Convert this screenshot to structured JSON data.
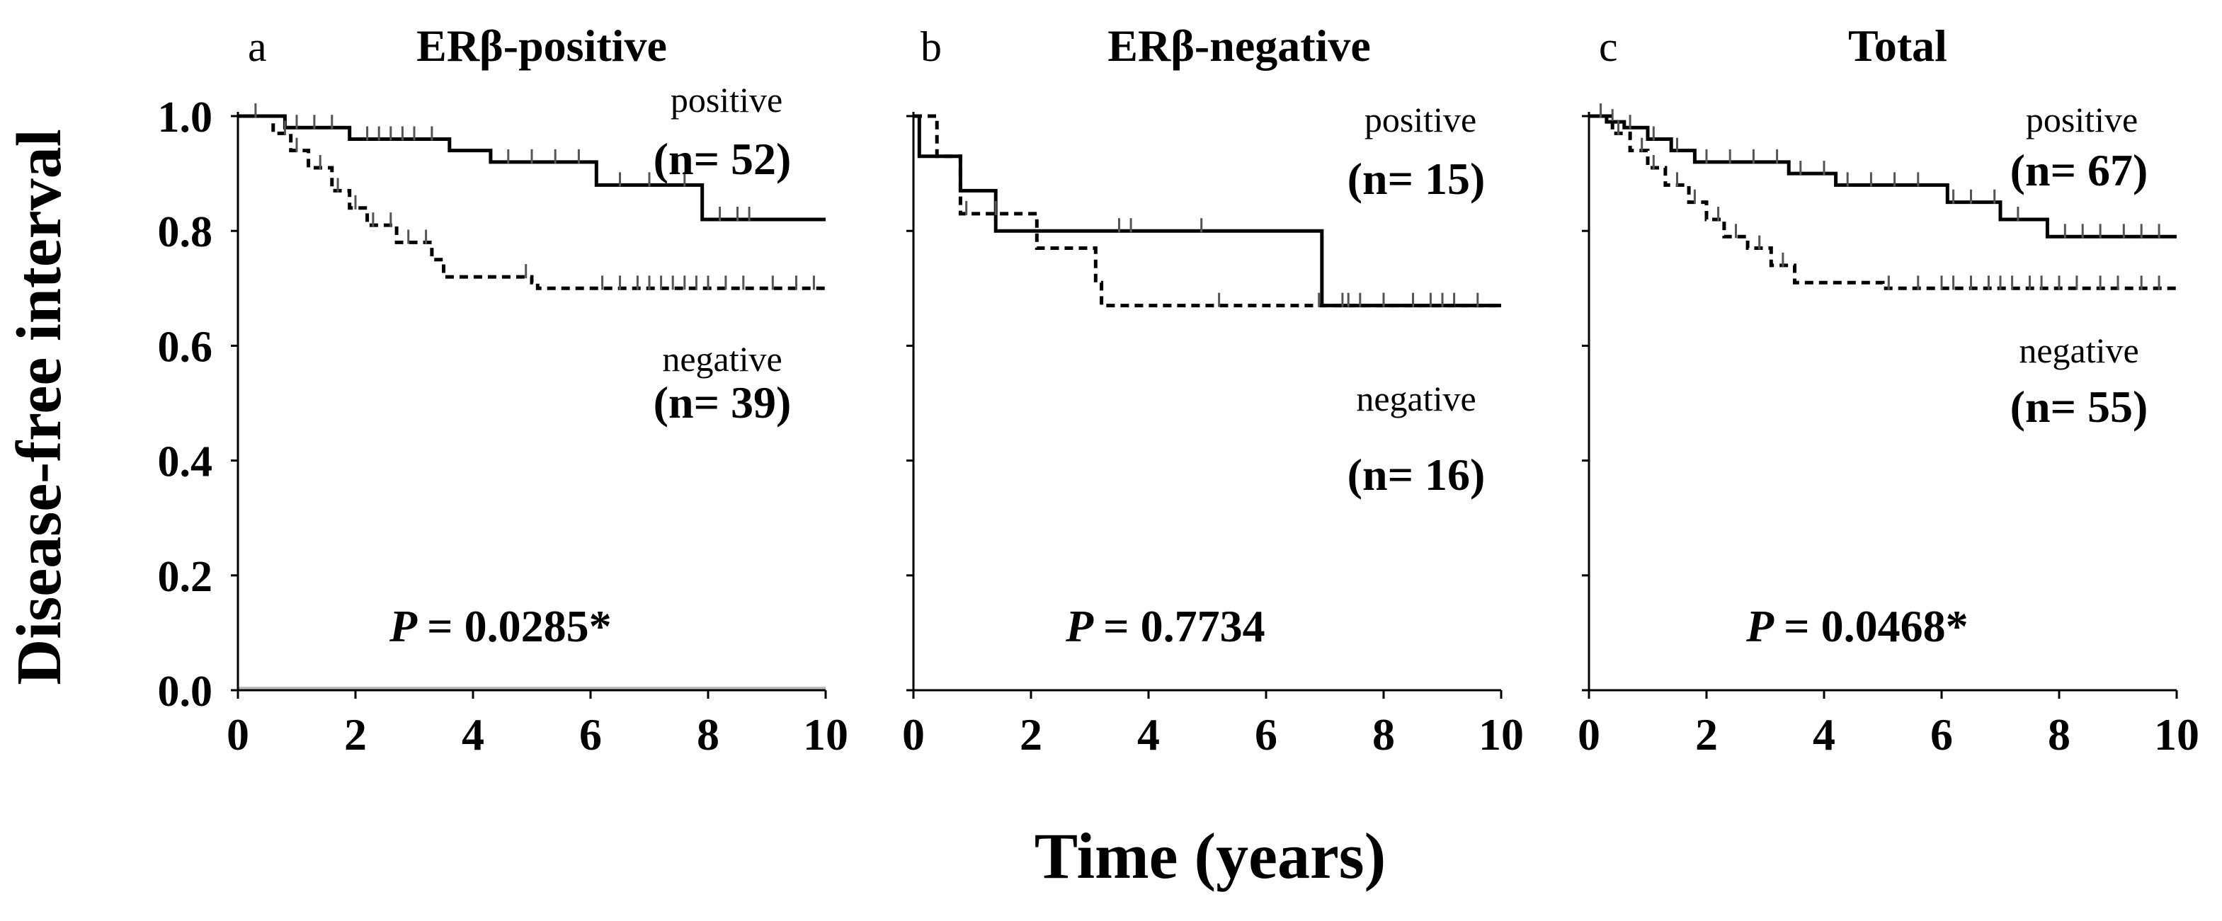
{
  "figure": {
    "ylabel": "Disease-free interval",
    "xlabel": "Time (years)"
  },
  "chart_data": [
    {
      "type": "line",
      "panel_letter": "a",
      "title": "ERβ-positive",
      "xlabel": "Time (years)",
      "ylabel": "Disease-free interval",
      "xlim": [
        0,
        10
      ],
      "ylim": [
        0,
        1
      ],
      "x_ticks": [
        "0",
        "2",
        "4",
        "6",
        "8",
        "10"
      ],
      "y_ticks": [
        "0.0",
        "0.2",
        "0.4",
        "0.6",
        "0.8",
        "1.0"
      ],
      "p_label": "P",
      "p_value_text": "= 0.0285*",
      "series": [
        {
          "name": "positive",
          "n_text": "(n= 52)",
          "style": "solid",
          "steps": [
            [
              0,
              1.0
            ],
            [
              0.8,
              0.98
            ],
            [
              1.9,
              0.96
            ],
            [
              3.6,
              0.94
            ],
            [
              4.3,
              0.92
            ],
            [
              6.1,
              0.88
            ],
            [
              7.9,
              0.82
            ],
            [
              10,
              0.82
            ]
          ],
          "censored": [
            1.0,
            1.3,
            1.6,
            2.2,
            2.4,
            2.6,
            2.8,
            3.0,
            3.3,
            4.6,
            5.0,
            5.4,
            5.8,
            6.5,
            7.0,
            7.6,
            8.2,
            8.5,
            8.7
          ]
        },
        {
          "name": "negative",
          "n_text": "(n= 39)",
          "style": "dashed",
          "steps": [
            [
              0,
              1.0
            ],
            [
              0.6,
              0.97
            ],
            [
              0.9,
              0.94
            ],
            [
              1.2,
              0.91
            ],
            [
              1.6,
              0.87
            ],
            [
              1.9,
              0.84
            ],
            [
              2.2,
              0.81
            ],
            [
              2.7,
              0.78
            ],
            [
              3.3,
              0.75
            ],
            [
              3.5,
              0.72
            ],
            [
              5.0,
              0.71
            ],
            [
              5.1,
              0.7
            ],
            [
              10,
              0.7
            ]
          ],
          "censored": [
            0.3,
            0.8,
            1.0,
            1.4,
            1.7,
            2.0,
            2.3,
            2.6,
            2.9,
            3.2,
            4.9,
            6.2,
            6.5,
            6.8,
            7.0,
            7.2,
            7.4,
            7.6,
            7.8,
            8.0,
            8.3,
            8.6,
            9.1,
            9.5,
            9.8
          ]
        }
      ]
    },
    {
      "type": "line",
      "panel_letter": "b",
      "title": "ERβ-negative",
      "xlabel": "Time (years)",
      "ylabel": "Disease-free interval",
      "xlim": [
        0,
        10
      ],
      "ylim": [
        0,
        1
      ],
      "x_ticks": [
        "0",
        "2",
        "4",
        "6",
        "8",
        "10"
      ],
      "y_ticks": [
        "0.0",
        "0.2",
        "0.4",
        "0.6",
        "0.8",
        "1.0"
      ],
      "p_label": "P",
      "p_value_text": "= 0.7734",
      "series": [
        {
          "name": "positive",
          "n_text": "(n= 15)",
          "style": "solid",
          "steps": [
            [
              0,
              1.0
            ],
            [
              0.1,
              0.93
            ],
            [
              0.8,
              0.87
            ],
            [
              1.4,
              0.8
            ],
            [
              6.9,
              0.8
            ],
            [
              6.95,
              0.67
            ],
            [
              10,
              0.67
            ]
          ],
          "censored": [
            3.5,
            3.7,
            4.9,
            7.3,
            7.6,
            8.0,
            8.5,
            9.0,
            9.2
          ]
        },
        {
          "name": "negative",
          "n_text": "(n= 16)",
          "style": "dashed",
          "steps": [
            [
              0,
              1.0
            ],
            [
              0.4,
              0.93
            ],
            [
              0.8,
              0.83
            ],
            [
              2.1,
              0.77
            ],
            [
              3.1,
              0.71
            ],
            [
              3.2,
              0.67
            ],
            [
              10,
              0.67
            ]
          ],
          "censored": [
            0.9,
            1.4,
            5.2,
            6.9,
            7.4,
            8.0,
            8.8,
            9.6
          ]
        }
      ]
    },
    {
      "type": "line",
      "panel_letter": "c",
      "title": "Total",
      "xlabel": "Time (years)",
      "ylabel": "Disease-free interval",
      "xlim": [
        0,
        10
      ],
      "ylim": [
        0,
        1
      ],
      "x_ticks": [
        "0",
        "2",
        "4",
        "6",
        "8",
        "10"
      ],
      "y_ticks": [
        "0.0",
        "0.2",
        "0.4",
        "0.6",
        "0.8",
        "1.0"
      ],
      "p_label": "P",
      "p_value_text": "= 0.0468*",
      "series": [
        {
          "name": "positive",
          "n_text": "(n= 67)",
          "style": "solid",
          "steps": [
            [
              0,
              1.0
            ],
            [
              0.3,
              0.99
            ],
            [
              0.6,
              0.98
            ],
            [
              1.0,
              0.96
            ],
            [
              1.4,
              0.94
            ],
            [
              1.8,
              0.92
            ],
            [
              3.4,
              0.9
            ],
            [
              4.2,
              0.88
            ],
            [
              6.1,
              0.85
            ],
            [
              7.0,
              0.82
            ],
            [
              7.8,
              0.79
            ],
            [
              10,
              0.79
            ]
          ],
          "censored": [
            0.4,
            0.7,
            1.1,
            1.5,
            2.0,
            2.4,
            2.8,
            3.2,
            3.6,
            4.0,
            4.4,
            4.8,
            5.2,
            5.6,
            6.2,
            6.5,
            6.9,
            7.3,
            8.1,
            8.4,
            8.7,
            9.1,
            9.4,
            9.7
          ]
        },
        {
          "name": "negative",
          "n_text": "(n= 55)",
          "style": "dashed",
          "steps": [
            [
              0,
              1.0
            ],
            [
              0.4,
              0.97
            ],
            [
              0.7,
              0.94
            ],
            [
              1.0,
              0.91
            ],
            [
              1.3,
              0.88
            ],
            [
              1.7,
              0.85
            ],
            [
              2.0,
              0.82
            ],
            [
              2.3,
              0.79
            ],
            [
              2.7,
              0.77
            ],
            [
              3.1,
              0.74
            ],
            [
              3.5,
              0.71
            ],
            [
              5.0,
              0.7
            ],
            [
              10,
              0.7
            ]
          ],
          "censored": [
            0.2,
            0.5,
            0.9,
            1.1,
            1.5,
            1.8,
            2.2,
            2.5,
            2.9,
            3.3,
            5.1,
            5.6,
            6.0,
            6.2,
            6.5,
            6.8,
            7.0,
            7.2,
            7.5,
            7.7,
            8.0,
            8.3,
            8.7,
            9.0,
            9.4,
            9.7
          ]
        }
      ]
    }
  ]
}
